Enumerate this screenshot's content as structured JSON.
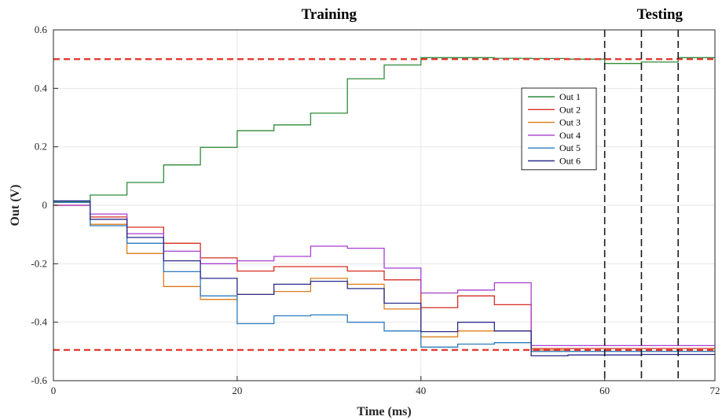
{
  "chart_data": {
    "type": "line",
    "xlabel": "Time (ms)",
    "ylabel": "Out (V)",
    "xlim": [
      0,
      72
    ],
    "ylim": [
      -0.6,
      0.6
    ],
    "xticks": [
      0,
      20,
      40,
      60,
      72
    ],
    "xtick_labels": [
      "0",
      "20",
      "40",
      "60",
      "72"
    ],
    "yticks": [
      0.6,
      0.4,
      0.2,
      0,
      -0.2,
      -0.4,
      -0.6
    ],
    "ytick_labels": [
      "0.6",
      "0.4",
      "0.2",
      "0",
      "-0.2",
      "-0.4",
      "-0.6"
    ],
    "grid": true,
    "legend_position": "upper-right",
    "annotations": [
      {
        "text": "Training",
        "x": 30
      },
      {
        "text": "Testing",
        "x": 66
      }
    ],
    "thresholds": [
      {
        "y": 0.5,
        "color": "#e03c31",
        "style": "dashed"
      },
      {
        "y": -0.495,
        "color": "#e03c31",
        "style": "dashed"
      }
    ],
    "test_markers": [
      60,
      64,
      68
    ],
    "step_times": [
      0,
      4,
      8,
      12,
      16,
      20,
      24,
      28,
      32,
      36,
      40,
      44,
      48,
      52,
      56,
      60,
      64,
      68,
      72
    ],
    "series": [
      {
        "name": "Out 1",
        "color": "#2e8b3a",
        "values": [
          0.012,
          0.035,
          0.078,
          0.138,
          0.198,
          0.255,
          0.275,
          0.315,
          0.433,
          0.48,
          0.505,
          0.505,
          0.503,
          0.502,
          0.5,
          0.485,
          0.49,
          0.505
        ]
      },
      {
        "name": "Out 2",
        "color": "#d62d20",
        "values": [
          0.0,
          -0.04,
          -0.075,
          -0.13,
          -0.18,
          -0.225,
          -0.21,
          -0.21,
          -0.225,
          -0.255,
          -0.35,
          -0.31,
          -0.34,
          -0.49,
          -0.49,
          -0.49,
          -0.49,
          -0.49
        ]
      },
      {
        "name": "Out 3",
        "color": "#e07b1a",
        "values": [
          0.0,
          -0.065,
          -0.165,
          -0.278,
          -0.322,
          -0.305,
          -0.295,
          -0.25,
          -0.27,
          -0.355,
          -0.45,
          -0.43,
          -0.43,
          -0.495,
          -0.5,
          -0.5,
          -0.5,
          -0.5
        ]
      },
      {
        "name": "Out 4",
        "color": "#a63fd0",
        "values": [
          0.0,
          -0.03,
          -0.097,
          -0.157,
          -0.2,
          -0.19,
          -0.175,
          -0.14,
          -0.147,
          -0.215,
          -0.3,
          -0.29,
          -0.265,
          -0.48,
          -0.48,
          -0.48,
          -0.48,
          -0.48
        ]
      },
      {
        "name": "Out 5",
        "color": "#2c7bbf",
        "values": [
          0.01,
          -0.07,
          -0.13,
          -0.227,
          -0.31,
          -0.405,
          -0.378,
          -0.375,
          -0.4,
          -0.43,
          -0.485,
          -0.475,
          -0.47,
          -0.5,
          -0.5,
          -0.5,
          -0.5,
          -0.5
        ]
      },
      {
        "name": "Out 6",
        "color": "#2a2a8c",
        "values": [
          0.015,
          -0.048,
          -0.11,
          -0.19,
          -0.25,
          -0.305,
          -0.27,
          -0.26,
          -0.285,
          -0.335,
          -0.432,
          -0.4,
          -0.43,
          -0.515,
          -0.512,
          -0.512,
          -0.51,
          -0.51
        ]
      }
    ]
  }
}
